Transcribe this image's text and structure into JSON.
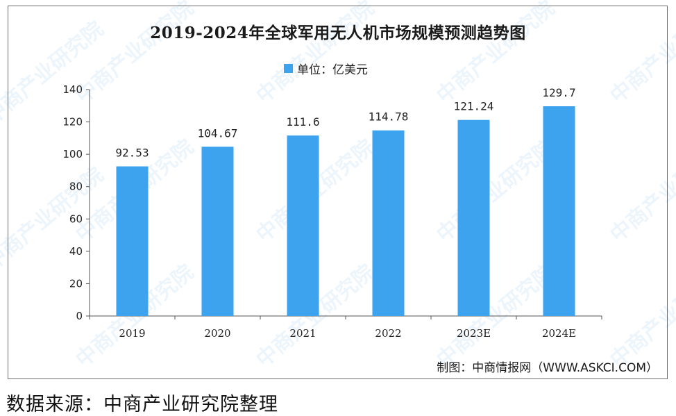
{
  "title": "2019-2024年全球军用无人机市场规模预测趋势图",
  "legend_label": "单位：亿美元",
  "credit": "制图：中商情报网（WWW.ASKCI.COM）",
  "source": "数据来源：中商产业研究院整理",
  "watermark": "中商产业研究院",
  "colors": {
    "bar": "#3ea3ef",
    "axis": "#555555"
  },
  "chart_data": {
    "type": "bar",
    "categories": [
      "2019",
      "2020",
      "2021",
      "2022",
      "2023E",
      "2024E"
    ],
    "series": [
      {
        "name": "单位：亿美元",
        "values": [
          92.53,
          104.67,
          111.6,
          114.78,
          121.24,
          129.7
        ]
      }
    ],
    "data_labels": [
      "92.53",
      "104.67",
      "111.6",
      "114.78",
      "121.24",
      "129.7"
    ],
    "title": "2019-2024年全球军用无人机市场规模预测趋势图",
    "xlabel": "",
    "ylabel": "",
    "ylim": [
      0,
      140
    ],
    "yticks": [
      0,
      20,
      40,
      60,
      80,
      100,
      120,
      140
    ],
    "grid": false,
    "legend_position": "top-center"
  }
}
